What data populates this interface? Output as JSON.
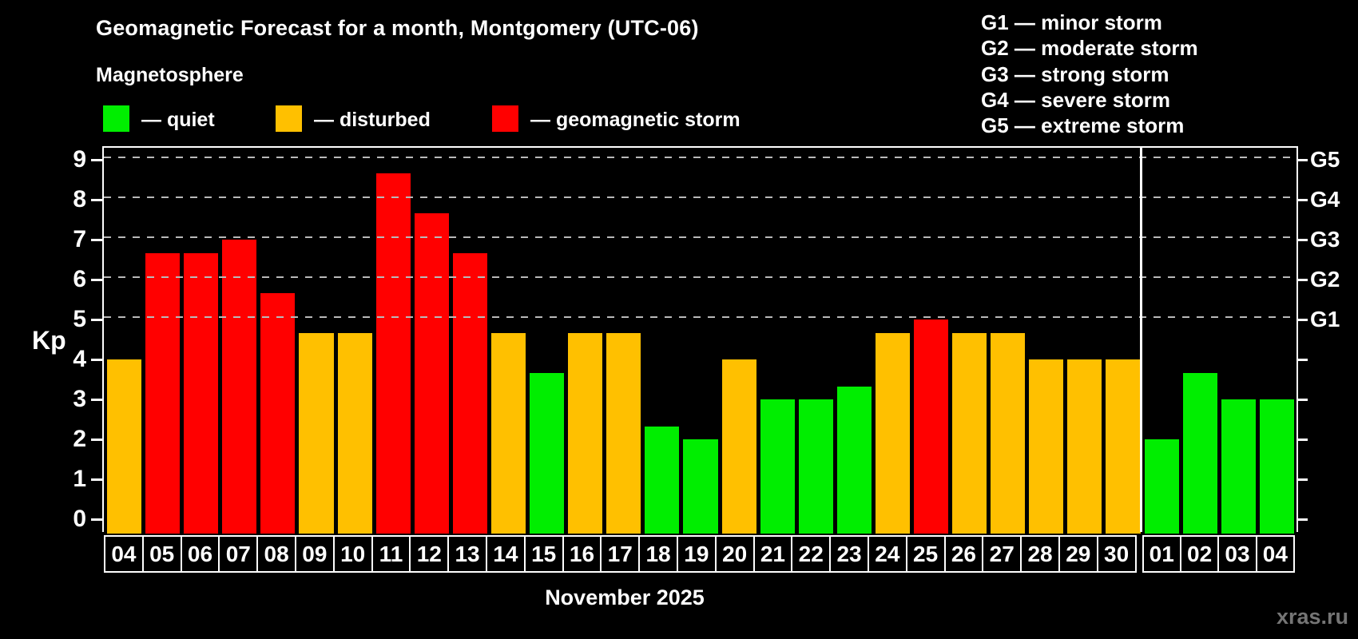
{
  "header": {
    "title": "Geomagnetic Forecast for a month, Montgomery (UTC-06)",
    "subtitle": "Magnetosphere"
  },
  "legend": {
    "items": [
      {
        "label": "— quiet",
        "status": "quiet"
      },
      {
        "label": "— disturbed",
        "status": "disturbed"
      },
      {
        "label": "— geomagnetic storm",
        "status": "storm"
      }
    ]
  },
  "storm_scale_legend": {
    "lines": [
      "G1 — minor storm",
      "G2 — moderate storm",
      "G3 — strong storm",
      "G4 — severe storm",
      "G5 — extreme storm"
    ]
  },
  "watermark": "xras.ru",
  "status_colors": {
    "quiet": "#00ee00",
    "disturbed": "#ffc000",
    "storm": "#ff0000"
  },
  "chart_data": {
    "type": "bar",
    "title": "Geomagnetic Forecast for a month, Montgomery (UTC-06)",
    "subtitle": "Magnetosphere",
    "xlabel": "November 2025",
    "ylabel": "Kp",
    "ylim": [
      0,
      9.4
    ],
    "grid": "dashed horizontal at Kp 5-9",
    "legend_position": "top-left",
    "yticks": [
      "0",
      "1",
      "2",
      "3",
      "4",
      "5",
      "6",
      "7",
      "8",
      "9"
    ],
    "right_axis_labels": [
      {
        "label": "G1",
        "kp": 5
      },
      {
        "label": "G2",
        "kp": 6
      },
      {
        "label": "G3",
        "kp": 7
      },
      {
        "label": "G4",
        "kp": 8
      },
      {
        "label": "G5",
        "kp": 9
      }
    ],
    "month_separator_after_index": 26,
    "categories": [
      "04",
      "05",
      "06",
      "07",
      "08",
      "09",
      "10",
      "11",
      "12",
      "13",
      "14",
      "15",
      "16",
      "17",
      "18",
      "19",
      "20",
      "21",
      "22",
      "23",
      "24",
      "25",
      "26",
      "27",
      "28",
      "29",
      "30",
      "01",
      "02",
      "03",
      "04"
    ],
    "values": [
      4.0,
      6.67,
      6.67,
      7.0,
      5.67,
      4.67,
      4.67,
      8.67,
      7.67,
      6.67,
      4.67,
      3.67,
      4.67,
      4.67,
      2.33,
      2.0,
      4.0,
      3.0,
      3.0,
      3.33,
      4.67,
      5.0,
      4.67,
      4.67,
      4.0,
      4.0,
      4.0,
      2.0,
      3.67,
      3.0,
      3.0
    ],
    "days": [
      {
        "date": "04",
        "kp": 4.0,
        "status": "disturbed"
      },
      {
        "date": "05",
        "kp": 6.67,
        "status": "storm"
      },
      {
        "date": "06",
        "kp": 6.67,
        "status": "storm"
      },
      {
        "date": "07",
        "kp": 7.0,
        "status": "storm"
      },
      {
        "date": "08",
        "kp": 5.67,
        "status": "storm"
      },
      {
        "date": "09",
        "kp": 4.67,
        "status": "disturbed"
      },
      {
        "date": "10",
        "kp": 4.67,
        "status": "disturbed"
      },
      {
        "date": "11",
        "kp": 8.67,
        "status": "storm"
      },
      {
        "date": "12",
        "kp": 7.67,
        "status": "storm"
      },
      {
        "date": "13",
        "kp": 6.67,
        "status": "storm"
      },
      {
        "date": "14",
        "kp": 4.67,
        "status": "disturbed"
      },
      {
        "date": "15",
        "kp": 3.67,
        "status": "quiet"
      },
      {
        "date": "16",
        "kp": 4.67,
        "status": "disturbed"
      },
      {
        "date": "17",
        "kp": 4.67,
        "status": "disturbed"
      },
      {
        "date": "18",
        "kp": 2.33,
        "status": "quiet"
      },
      {
        "date": "19",
        "kp": 2.0,
        "status": "quiet"
      },
      {
        "date": "20",
        "kp": 4.0,
        "status": "disturbed"
      },
      {
        "date": "21",
        "kp": 3.0,
        "status": "quiet"
      },
      {
        "date": "22",
        "kp": 3.0,
        "status": "quiet"
      },
      {
        "date": "23",
        "kp": 3.33,
        "status": "quiet"
      },
      {
        "date": "24",
        "kp": 4.67,
        "status": "disturbed"
      },
      {
        "date": "25",
        "kp": 5.0,
        "status": "storm"
      },
      {
        "date": "26",
        "kp": 4.67,
        "status": "disturbed"
      },
      {
        "date": "27",
        "kp": 4.67,
        "status": "disturbed"
      },
      {
        "date": "28",
        "kp": 4.0,
        "status": "disturbed"
      },
      {
        "date": "29",
        "kp": 4.0,
        "status": "disturbed"
      },
      {
        "date": "30",
        "kp": 4.0,
        "status": "disturbed"
      },
      {
        "date": "01",
        "kp": 2.0,
        "status": "quiet"
      },
      {
        "date": "02",
        "kp": 3.67,
        "status": "quiet"
      },
      {
        "date": "03",
        "kp": 3.0,
        "status": "quiet"
      },
      {
        "date": "04",
        "kp": 3.0,
        "status": "quiet"
      }
    ]
  }
}
